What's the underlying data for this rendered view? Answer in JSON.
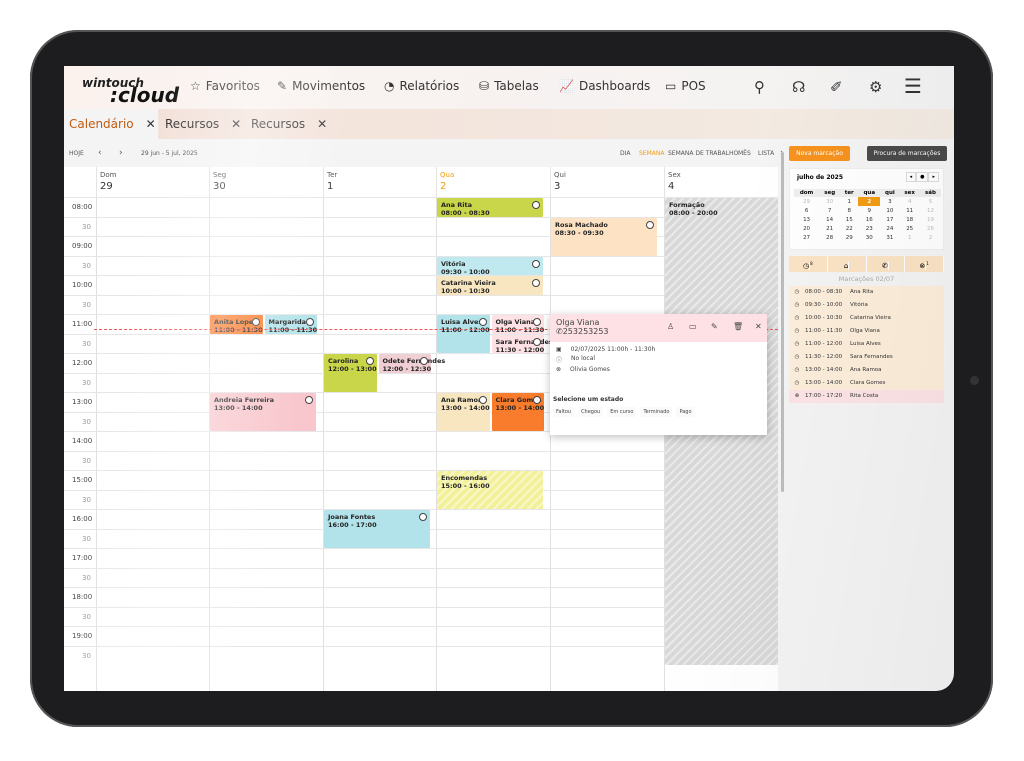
{
  "app": {
    "logo_top": "wintouch",
    "logo_bottom": ":cloud"
  },
  "nav": {
    "items": [
      {
        "label": "Favoritos",
        "icon": "star-icon"
      },
      {
        "label": "Movimentos",
        "icon": "edit-icon"
      },
      {
        "label": "Relatórios",
        "icon": "pie-chart-icon"
      },
      {
        "label": "Tabelas",
        "icon": "database-icon"
      },
      {
        "label": "Dashboards",
        "icon": "line-chart-icon"
      },
      {
        "label": "POS",
        "icon": "pos-icon"
      }
    ],
    "right_icons": [
      "search-icon",
      "headset-icon",
      "tools-icon",
      "gear-icon",
      "menu-icon"
    ]
  },
  "tabs": [
    {
      "label": "Calendário",
      "active": true
    },
    {
      "label": "Recursos"
    },
    {
      "label": "Recursos"
    }
  ],
  "toolbar": {
    "today": "HOJE",
    "prev": "‹",
    "next": "›",
    "range": "29 jun - 5 jul, 2025",
    "views": [
      "DIA",
      "SEMANA",
      "SEMANA DE TRABALHO",
      "MÊS",
      "LISTA"
    ],
    "active_view": "SEMANA"
  },
  "days": [
    {
      "name": "Dom",
      "num": "29"
    },
    {
      "name": "Seg",
      "num": "30"
    },
    {
      "name": "Ter",
      "num": "1"
    },
    {
      "name": "Qua",
      "num": "2",
      "today": true
    },
    {
      "name": "Qui",
      "num": "3"
    },
    {
      "name": "Sex",
      "num": "4"
    }
  ],
  "times": [
    "08:00",
    "30",
    "09:00",
    "30",
    "10:00",
    "30",
    "11:00",
    "30",
    "12:00",
    "30",
    "13:00",
    "30",
    "14:00",
    "30",
    "15:00",
    "30",
    "16:00",
    "30",
    "17:00",
    "30",
    "18:00",
    "30",
    "19:00",
    "30"
  ],
  "events": [
    {
      "day": 1,
      "name": "Anita Lopes",
      "time": "11:00 - 11:30",
      "start": "11:00",
      "end": "11:30",
      "color": "#f97c2c"
    },
    {
      "day": 1,
      "name": "Margarida",
      "time": "11:00 - 11:30",
      "start": "11:00",
      "end": "11:30",
      "color": "#b3e3ea"
    },
    {
      "day": 1,
      "name": "Andreia Ferreira",
      "time": "13:00 - 14:00",
      "start": "13:00",
      "end": "14:00",
      "color": "#f8c6cc"
    },
    {
      "day": 2,
      "name": "Carolina",
      "time": "12:00 - 13:00",
      "start": "12:00",
      "end": "13:00",
      "color": "#c9d64a"
    },
    {
      "day": 2,
      "name": "Odete Fernandes",
      "time": "12:00 - 12:30",
      "start": "12:00",
      "end": "12:30",
      "color": "#f0cfd4"
    },
    {
      "day": 2,
      "name": "Joana Fontes",
      "time": "16:00 - 17:00",
      "start": "16:00",
      "end": "17:00",
      "color": "#b3e3ea"
    },
    {
      "day": 3,
      "name": "Ana Rita",
      "time": "08:00 - 08:30",
      "start": "08:00",
      "end": "08:30",
      "color": "#c9d64a"
    },
    {
      "day": 3,
      "name": "Vitória",
      "time": "09:30 - 10:00",
      "start": "09:30",
      "end": "10:00",
      "color": "#bfe9ee"
    },
    {
      "day": 3,
      "name": "Catarina Vieira",
      "time": "10:00 - 10:30",
      "start": "10:00",
      "end": "10:30",
      "color": "#f8e6c0"
    },
    {
      "day": 3,
      "name": "Luisa Alves",
      "time": "11:00 - 12:00",
      "start": "11:00",
      "end": "12:00",
      "color": "#b3e3ea"
    },
    {
      "day": 3,
      "name": "Olga Viana",
      "time": "11:00 - 11:30",
      "start": "11:00",
      "end": "11:30",
      "color": "#fde1e4"
    },
    {
      "day": 3,
      "name": "Sara Fernandes",
      "time": "11:30 - 12:00",
      "start": "11:30",
      "end": "12:00",
      "color": "#fde1e4"
    },
    {
      "day": 3,
      "name": "Ana Ramoa",
      "time": "13:00 - 14:00",
      "start": "13:00",
      "end": "14:00",
      "color": "#f8e6c0"
    },
    {
      "day": 3,
      "name": "Clara Gomes",
      "time": "13:00 - 14:00",
      "start": "13:00",
      "end": "14:00",
      "color": "#f97c2c"
    },
    {
      "day": 3,
      "name": "Encomendas",
      "time": "15:00 - 16:00",
      "start": "15:00",
      "end": "16:00",
      "color": "#f3f09a",
      "striped": true
    },
    {
      "day": 4,
      "name": "Rosa Machado",
      "time": "08:30 - 09:30",
      "start": "08:30",
      "end": "09:30",
      "color": "#fde3c4"
    },
    {
      "day": 5,
      "name": "Formação",
      "time": "08:00 - 20:00",
      "start": "08:00",
      "end": "20:00",
      "color": "#d8d8d8",
      "striped": true
    }
  ],
  "popup": {
    "name": "Olga Viana",
    "phone": "253253253",
    "datetime": "02/07/2025 11:00h - 11:30h",
    "location": "No local",
    "staff": "Olivia Gomes",
    "state_title": "Selecione um estado",
    "states": [
      "Faltou",
      "Chegou",
      "Em curso",
      "Terminado",
      "Pago"
    ],
    "actions": [
      "person-icon",
      "screen-icon",
      "pencil-icon",
      "trash-icon",
      "close-icon"
    ]
  },
  "side": {
    "new_btn": "Nova marcação",
    "search_btn": "Procura de marcações",
    "accent": "#f7931e",
    "month": "julho de 2025",
    "weekdays": [
      "dom",
      "seg",
      "ter",
      "qua",
      "qui",
      "sex",
      "sáb"
    ],
    "weeks": [
      [
        "29",
        "30",
        "1",
        "2",
        "3",
        "4",
        "5"
      ],
      [
        "6",
        "7",
        "8",
        "9",
        "10",
        "11",
        "12"
      ],
      [
        "13",
        "14",
        "15",
        "16",
        "17",
        "18",
        "19"
      ],
      [
        "20",
        "21",
        "22",
        "23",
        "24",
        "25",
        "26"
      ],
      [
        "27",
        "28",
        "29",
        "30",
        "31",
        "1",
        "2"
      ]
    ],
    "selected": "2",
    "stats": [
      {
        "icon": "clock-icon",
        "count": "8"
      },
      {
        "icon": "building-icon",
        "count": ""
      },
      {
        "icon": "phone-icon",
        "count": ""
      },
      {
        "icon": "cancel-icon",
        "count": "1"
      }
    ],
    "list_title": "Marcações 02/07",
    "list": [
      {
        "time": "08:00 - 08:30",
        "name": "Ana Rita"
      },
      {
        "time": "09:30 - 10:00",
        "name": "Vitória"
      },
      {
        "time": "10:00 - 10:30",
        "name": "Catarina Vieira"
      },
      {
        "time": "11:00 - 11:30",
        "name": "Olga Viana"
      },
      {
        "time": "11:00 - 12:00",
        "name": "Luisa Alves"
      },
      {
        "time": "11:30 - 12:00",
        "name": "Sara Fernandes"
      },
      {
        "time": "13:00 - 14:00",
        "name": "Ana Ramoa"
      },
      {
        "time": "13:00 - 14:00",
        "name": "Clara Gomes"
      },
      {
        "time": "17:00 - 17:20",
        "name": "Rita Costa",
        "cancelled": true
      }
    ]
  }
}
